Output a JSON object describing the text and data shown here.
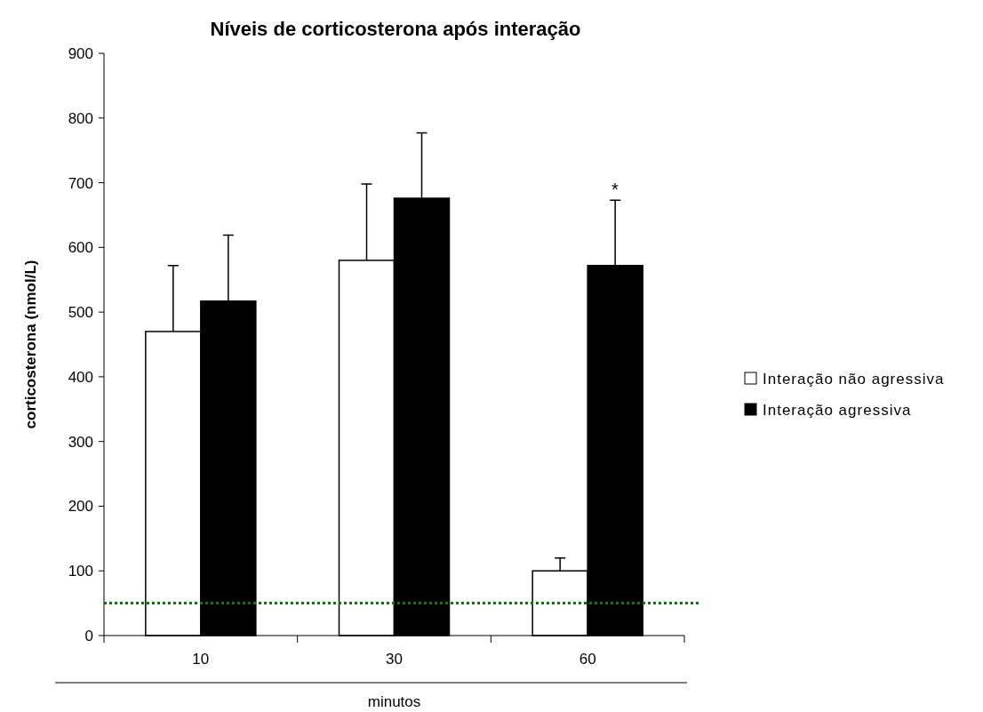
{
  "chart_data": {
    "type": "bar",
    "title": "Níveis de corticosterona após interação",
    "xlabel": "minutos",
    "ylabel": "corticosterona (nmol/L)",
    "categories": [
      "10",
      "30",
      "60"
    ],
    "series": [
      {
        "name": "Interação não agressiva",
        "color": "#ffffff",
        "values": [
          470,
          580,
          100
        ],
        "errors": [
          [
            470,
            572
          ],
          [
            580,
            698
          ],
          [
            100,
            120
          ]
        ]
      },
      {
        "name": "Interação agressiva",
        "color": "#000000",
        "values": [
          517,
          676,
          572
        ],
        "errors": [
          [
            517,
            619
          ],
          [
            676,
            777
          ],
          [
            572,
            673
          ]
        ]
      }
    ],
    "ylim": [
      0,
      900
    ],
    "yticks": [
      0,
      100,
      200,
      300,
      400,
      500,
      600,
      700,
      800,
      900
    ],
    "grid": false,
    "legend": "right",
    "ref_lines": [
      {
        "axis": "y",
        "value": 50,
        "color": "#008000",
        "line_style": "dotted"
      }
    ],
    "annotations": [
      "*"
    ]
  }
}
